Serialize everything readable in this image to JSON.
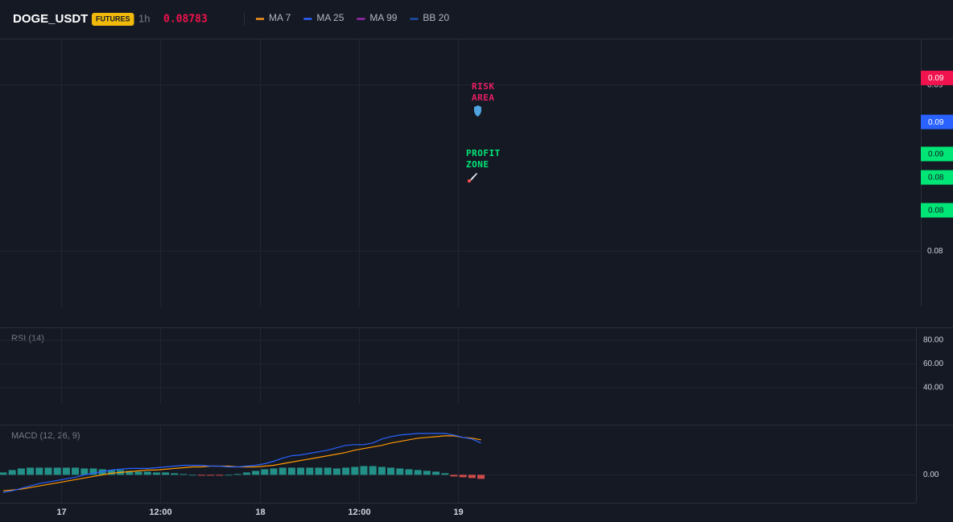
{
  "header": {
    "symbol": "DOGE_USDT",
    "badge": "FUTURES",
    "interval": "1h",
    "price": "0.08783",
    "legend": [
      {
        "name": "MA 7",
        "color": "#f7931a"
      },
      {
        "name": "MA 25",
        "color": "#2962ff"
      },
      {
        "name": "MA 99",
        "color": "#9c27b0"
      },
      {
        "name": "BB 20",
        "color": "#1e4fa8"
      }
    ]
  },
  "price_pane": {
    "ylim": [
      0.07667,
      0.09275
    ],
    "yticks": [
      0.09,
      0.08
    ],
    "price_labels": [
      {
        "value": 0.09043,
        "label": "0.09",
        "color": "#f0134d"
      },
      {
        "value": 0.08778,
        "label": "0.09",
        "color": "#2962ff"
      },
      {
        "value": 0.08585,
        "label": "0.09",
        "color": "#00e676"
      },
      {
        "value": 0.08444,
        "label": "0.08",
        "color": "#00e676"
      },
      {
        "value": 0.08246,
        "label": "0.08",
        "color": "#00e676"
      }
    ],
    "annotations": [
      {
        "lines": [
          "RISK",
          "AREA"
        ],
        "color": "#e91e63"
      },
      {
        "lines": [
          "PROFIT",
          "ZONE"
        ],
        "color": "#00e676"
      }
    ]
  },
  "rsi_pane": {
    "label": "RSI (14)",
    "ylim": [
      26.4,
      90.2
    ],
    "yticks": [
      {
        "value": 80,
        "label": "80.00"
      },
      {
        "value": 60,
        "label": "60.00"
      },
      {
        "value": 40,
        "label": "40.00"
      }
    ]
  },
  "macd_pane": {
    "label": "MACD (12, 26, 9)",
    "ylim": [
      -0.0007,
      0.00124
    ],
    "yticks": [
      {
        "value": 0,
        "label": "0.00"
      }
    ],
    "histogram": [
      6e-05,
      0.00012,
      0.00016,
      0.00018,
      0.00018,
      0.00018,
      0.00018,
      0.00018,
      0.00018,
      0.00016,
      0.00016,
      0.00014,
      0.00012,
      0.00012,
      0.0001,
      8e-05,
      8e-05,
      6e-05,
      6e-05,
      4e-05,
      2e-05,
      0,
      -2e-05,
      -2e-05,
      -2e-05,
      0,
      2e-05,
      6e-05,
      0.0001,
      0.00014,
      0.00016,
      0.00018,
      0.00018,
      0.00018,
      0.00018,
      0.00018,
      0.00018,
      0.00016,
      0.00018,
      0.0002,
      0.00022,
      0.00022,
      0.0002,
      0.00018,
      0.00016,
      0.00014,
      0.00012,
      0.0001,
      8e-05,
      4e-05,
      -4e-05,
      -6e-05,
      -8e-05,
      -0.0001
    ],
    "macd": [
      -0.00044,
      -0.0004,
      -0.00034,
      -0.00028,
      -0.00022,
      -0.00018,
      -0.00014,
      -0.0001,
      -6e-05,
      0,
      4e-05,
      8e-05,
      0.00012,
      0.00014,
      0.00016,
      0.00016,
      0.00016,
      0.00018,
      0.0002,
      0.00022,
      0.00024,
      0.00024,
      0.00024,
      0.00022,
      0.00022,
      0.0002,
      0.0002,
      0.00022,
      0.00024,
      0.00028,
      0.00034,
      0.00042,
      0.00048,
      0.0005,
      0.00054,
      0.00058,
      0.00062,
      0.00068,
      0.00074,
      0.00076,
      0.00076,
      0.0008,
      0.0009,
      0.00096,
      0.001,
      0.00102,
      0.00104,
      0.00104,
      0.00104,
      0.00104,
      0.001,
      0.00094,
      0.0009,
      0.0008
    ],
    "signal": [
      -0.0004,
      -0.00038,
      -0.00036,
      -0.00032,
      -0.00028,
      -0.00024,
      -0.0002,
      -0.00016,
      -0.00012,
      -8e-05,
      -4e-05,
      0,
      4e-05,
      6e-05,
      8e-05,
      0.0001,
      0.00012,
      0.00012,
      0.00014,
      0.00016,
      0.00018,
      0.0002,
      0.0002,
      0.00022,
      0.00022,
      0.00022,
      0.0002,
      0.0002,
      0.0002,
      0.00022,
      0.00024,
      0.00028,
      0.00032,
      0.00036,
      0.0004,
      0.00044,
      0.00048,
      0.00052,
      0.00056,
      0.00062,
      0.00066,
      0.0007,
      0.00074,
      0.0008,
      0.00084,
      0.00088,
      0.00092,
      0.00094,
      0.00096,
      0.00098,
      0.00098,
      0.00094,
      0.00092,
      0.00088
    ],
    "macd_color": "#2962ff",
    "signal_color": "#ff9800",
    "up_color": "#26a69a",
    "down_color": "#ef5350"
  },
  "time_axis": [
    "17",
    "12:00",
    "18",
    "12:00",
    "19"
  ]
}
